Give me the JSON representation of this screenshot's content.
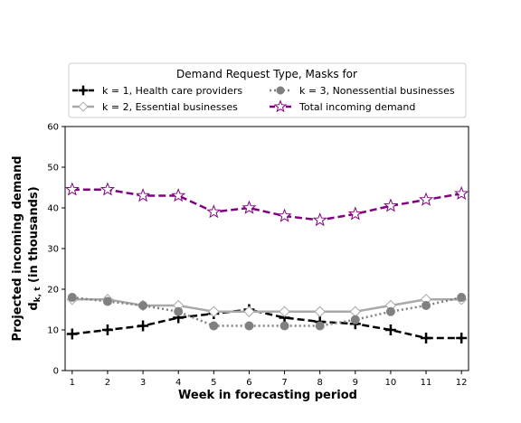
{
  "chart_data": {
    "type": "line",
    "title": "",
    "xlabel": "Week in forecasting period",
    "ylabel_line1": "Projected incoming demand",
    "ylabel_line2_var": "d",
    "ylabel_line2_sub": "k, t",
    "ylabel_line2_unit": " (in thousands)",
    "x": [
      1,
      2,
      3,
      4,
      5,
      6,
      7,
      8,
      9,
      10,
      11,
      12
    ],
    "xlim": [
      0.8,
      12.2
    ],
    "ylim": [
      0,
      60
    ],
    "x_ticks": [
      "1",
      "2",
      "3",
      "4",
      "5",
      "6",
      "7",
      "8",
      "9",
      "10",
      "11",
      "12"
    ],
    "y_ticks": [
      "0",
      "10",
      "20",
      "30",
      "40",
      "50",
      "60"
    ],
    "grid": false,
    "legend": {
      "title": "Demand Request Type, Masks for",
      "placement": "top, above plot, 2 columns"
    },
    "series": [
      {
        "name": "k = 1, Health care providers",
        "color": "#000000",
        "line_style": "dashed",
        "marker": "plus",
        "values": [
          9,
          10,
          11,
          13,
          14,
          15,
          13,
          12,
          11.5,
          10,
          8,
          8
        ]
      },
      {
        "name": "k = 2, Essential businesses",
        "color": "#a9a9a9",
        "line_style": "solid",
        "marker": "diamond",
        "values": [
          17.5,
          17.5,
          16,
          16,
          14.5,
          14.5,
          14.5,
          14.5,
          14.5,
          16,
          17.5,
          17.5
        ]
      },
      {
        "name": "k = 3, Nonessential businesses",
        "color": "#808080",
        "line_style": "dotted",
        "marker": "circle",
        "values": [
          18,
          17,
          16,
          14.5,
          11,
          11,
          11,
          11,
          12.5,
          14.5,
          16,
          18
        ]
      },
      {
        "name": "Total incoming demand",
        "color": "#800080",
        "line_style": "dashed",
        "marker": "star",
        "values": [
          44.5,
          44.5,
          43,
          43,
          39,
          40,
          38,
          37,
          38.5,
          40.5,
          42,
          43.5
        ]
      }
    ]
  }
}
